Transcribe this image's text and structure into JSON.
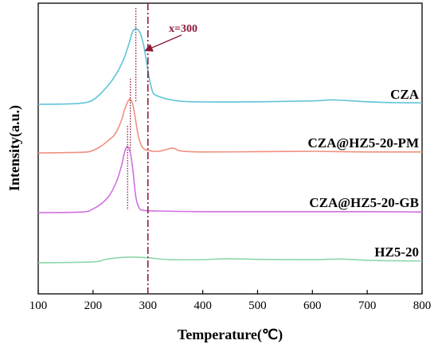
{
  "chart_data": {
    "type": "line",
    "xlabel": "Temperature(℃)",
    "ylabel": "Intensity(a.u.)",
    "xlim": [
      100,
      800
    ],
    "xticks": [
      100,
      200,
      300,
      400,
      500,
      600,
      700,
      800
    ],
    "grid": false,
    "annotation": {
      "label": "x=300",
      "x": 300,
      "color": "#8b1a3a"
    },
    "series": [
      {
        "name": "CZA",
        "color": "#5fc4d8",
        "peak_x": 278,
        "points": [
          [
            100,
            0
          ],
          [
            150,
            0.1
          ],
          [
            180,
            0.4
          ],
          [
            200,
            1.4
          ],
          [
            220,
            4.5
          ],
          [
            240,
            9
          ],
          [
            255,
            14
          ],
          [
            265,
            19
          ],
          [
            272,
            23
          ],
          [
            278,
            24
          ],
          [
            285,
            23
          ],
          [
            292,
            19
          ],
          [
            298,
            13
          ],
          [
            304,
            7
          ],
          [
            310,
            3.5
          ],
          [
            320,
            2.5
          ],
          [
            340,
            1.5
          ],
          [
            380,
            0.8
          ],
          [
            500,
            0.8
          ],
          [
            600,
            1.1
          ],
          [
            640,
            1.4
          ],
          [
            700,
            0.8
          ],
          [
            760,
            0.5
          ],
          [
            800,
            0.5
          ]
        ]
      },
      {
        "name": "CZA@HZ5-20-PM",
        "color": "#f09080",
        "peak_x": 268,
        "points": [
          [
            100,
            0
          ],
          [
            180,
            0.2
          ],
          [
            200,
            0.8
          ],
          [
            215,
            2.2
          ],
          [
            228,
            4
          ],
          [
            238,
            5.5
          ],
          [
            245,
            7.5
          ],
          [
            252,
            10.5
          ],
          [
            258,
            14
          ],
          [
            264,
            16.5
          ],
          [
            268,
            17
          ],
          [
            273,
            15
          ],
          [
            278,
            10
          ],
          [
            283,
            5
          ],
          [
            290,
            1.8
          ],
          [
            300,
            0.8
          ],
          [
            320,
            0.5
          ],
          [
            345,
            1.5
          ],
          [
            360,
            0.6
          ],
          [
            400,
            0.3
          ],
          [
            500,
            0.4
          ],
          [
            600,
            0.5
          ],
          [
            700,
            0.3
          ],
          [
            800,
            0.3
          ]
        ]
      },
      {
        "name": "CZA@HZ5-20-GB",
        "color": "#d070e0",
        "peak_x": 263,
        "points": [
          [
            100,
            0
          ],
          [
            180,
            0.2
          ],
          [
            200,
            1.2
          ],
          [
            215,
            2.8
          ],
          [
            230,
            5.5
          ],
          [
            243,
            10
          ],
          [
            252,
            15
          ],
          [
            258,
            19.5
          ],
          [
            263,
            21
          ],
          [
            268,
            19
          ],
          [
            273,
            13
          ],
          [
            278,
            5
          ],
          [
            284,
            1.5
          ],
          [
            292,
            0.7
          ],
          [
            320,
            0.5
          ],
          [
            400,
            0.3
          ],
          [
            500,
            0.3
          ],
          [
            600,
            0.3
          ],
          [
            700,
            0.3
          ],
          [
            800,
            0.2
          ]
        ]
      },
      {
        "name": "HZ5-20",
        "color": "#8cd8a8",
        "points": [
          [
            100,
            0
          ],
          [
            200,
            0.3
          ],
          [
            220,
            1
          ],
          [
            240,
            1.5
          ],
          [
            260,
            1.8
          ],
          [
            280,
            1.8
          ],
          [
            300,
            1.6
          ],
          [
            340,
            1
          ],
          [
            400,
            1
          ],
          [
            440,
            1.3
          ],
          [
            500,
            1.1
          ],
          [
            600,
            1
          ],
          [
            650,
            1.2
          ],
          [
            700,
            0.8
          ],
          [
            760,
            0.6
          ],
          [
            800,
            0.6
          ]
        ]
      }
    ]
  }
}
